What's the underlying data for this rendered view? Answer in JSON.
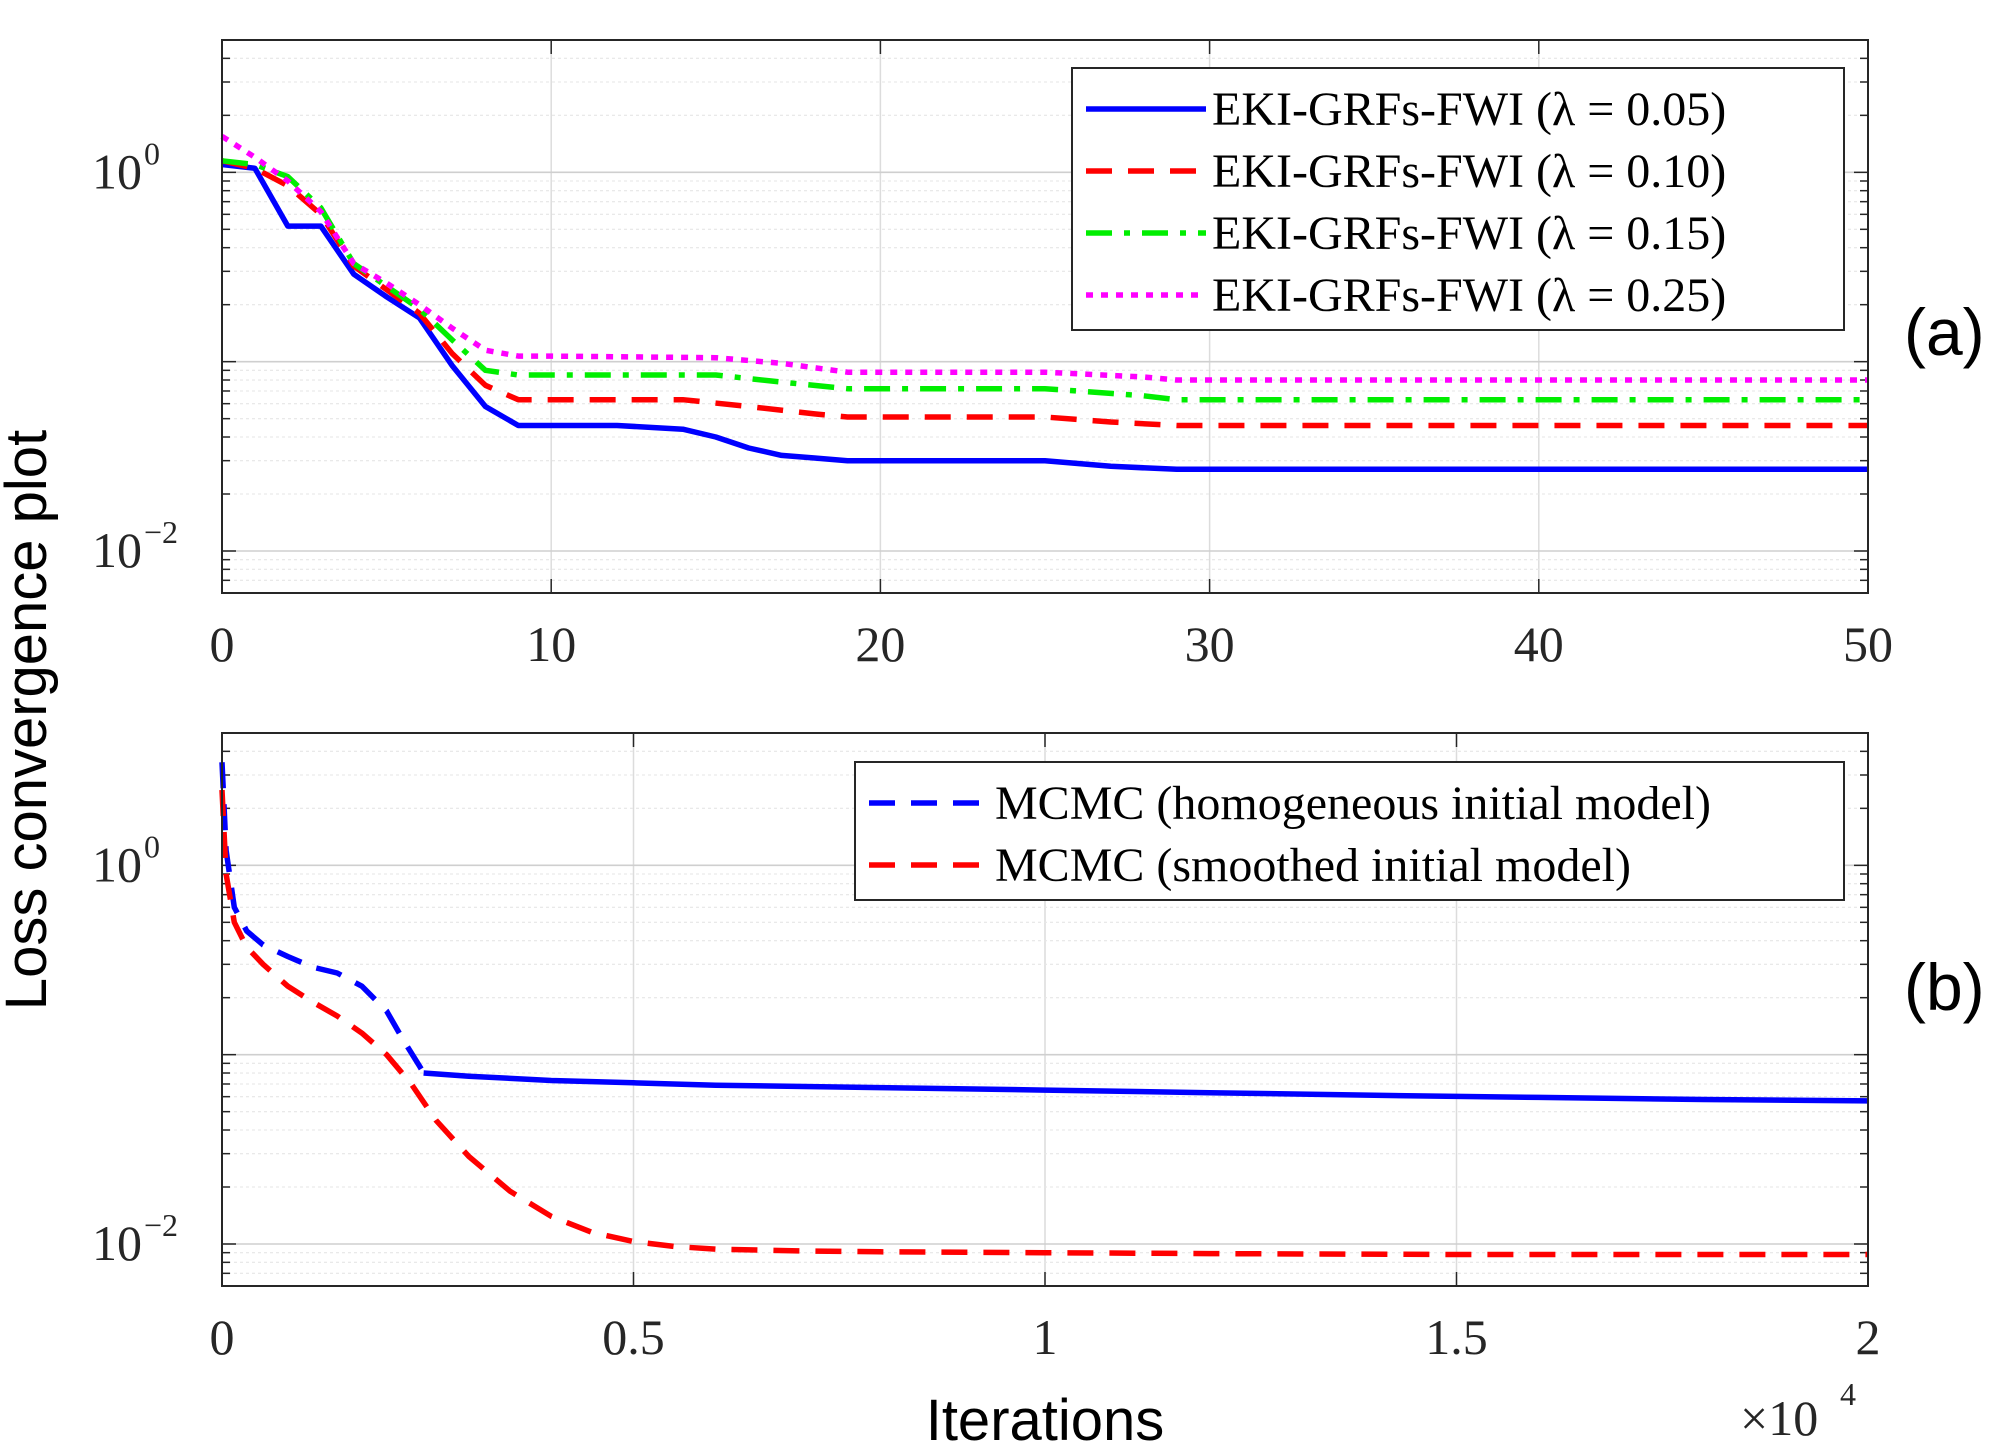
{
  "figure": {
    "ylabel": "Loss convergence plot",
    "xlabel": "Iterations"
  },
  "chart_data": [
    {
      "type": "line",
      "panel_label": "(a)",
      "yscale": "log",
      "ylim": [
        0.006,
        5
      ],
      "xlim": [
        0,
        50
      ],
      "xticks": [
        0,
        10,
        20,
        30,
        40,
        50
      ],
      "xtick_labels": [
        "0",
        "10",
        "20",
        "30",
        "40",
        "50"
      ],
      "yticks": [
        1,
        0.01
      ],
      "ytick_labels": [
        {
          "base": "10",
          "exp": "0"
        },
        {
          "base": "10",
          "exp": "−2"
        }
      ],
      "grid": true,
      "legend_position": "top-right",
      "series": [
        {
          "name": "EKI-GRFs-FWI (λ = 0.05)",
          "legend_label": "EKI-GRFs-FWI (λ = 0.05)",
          "color": "#0000ff",
          "style": "solid",
          "x": [
            0,
            1,
            2,
            3,
            4,
            5,
            6,
            7,
            8,
            9,
            10,
            12,
            14,
            15,
            16,
            17,
            18,
            19,
            20,
            25,
            27,
            29,
            30,
            40,
            50
          ],
          "y": [
            1.1,
            1.05,
            0.52,
            0.52,
            0.29,
            0.22,
            0.17,
            0.095,
            0.058,
            0.046,
            0.046,
            0.046,
            0.044,
            0.04,
            0.035,
            0.032,
            0.031,
            0.03,
            0.03,
            0.03,
            0.028,
            0.027,
            0.027,
            0.027,
            0.027
          ]
        },
        {
          "name": "EKI-GRFs-FWI (λ = 0.10)",
          "legend_label": "EKI-GRFs-FWI (λ = 0.10)",
          "color": "#ff0000",
          "style": "dashed",
          "x": [
            0,
            1,
            2,
            3,
            4,
            5,
            6,
            7,
            8,
            9,
            10,
            14,
            16,
            18,
            19,
            20,
            25,
            27,
            29,
            30,
            40,
            50
          ],
          "y": [
            1.15,
            1.05,
            0.85,
            0.6,
            0.32,
            0.24,
            0.18,
            0.11,
            0.075,
            0.063,
            0.063,
            0.063,
            0.058,
            0.053,
            0.051,
            0.051,
            0.051,
            0.048,
            0.046,
            0.046,
            0.046,
            0.046
          ]
        },
        {
          "name": "EKI-GRFs-FWI (λ = 0.15)",
          "legend_label": "EKI-GRFs-FWI (λ = 0.15)",
          "color": "#00ee00",
          "style": "dashdot",
          "x": [
            0,
            1,
            2,
            3,
            4,
            5,
            6,
            7,
            8,
            9,
            10,
            15,
            17,
            19,
            20,
            25,
            28,
            29,
            30,
            40,
            50
          ],
          "y": [
            1.15,
            1.1,
            0.95,
            0.65,
            0.33,
            0.25,
            0.19,
            0.13,
            0.09,
            0.085,
            0.085,
            0.085,
            0.078,
            0.072,
            0.072,
            0.072,
            0.066,
            0.063,
            0.063,
            0.063,
            0.063
          ]
        },
        {
          "name": "EKI-GRFs-FWI (λ = 0.25)",
          "legend_label": "EKI-GRFs-FWI (λ = 0.25)",
          "color": "#ff00ff",
          "style": "dotted",
          "x": [
            0,
            1,
            2,
            3,
            4,
            5,
            6,
            7,
            8,
            9,
            10,
            15,
            17,
            19,
            20,
            25,
            28,
            29,
            30,
            40,
            50
          ],
          "y": [
            1.55,
            1.2,
            0.9,
            0.62,
            0.33,
            0.26,
            0.2,
            0.15,
            0.115,
            0.107,
            0.107,
            0.105,
            0.098,
            0.088,
            0.088,
            0.088,
            0.083,
            0.08,
            0.08,
            0.08,
            0.08
          ]
        }
      ]
    },
    {
      "type": "line",
      "panel_label": "(b)",
      "yscale": "log",
      "ylim": [
        0.006,
        5
      ],
      "xlim": [
        0,
        20000
      ],
      "xticks": [
        0,
        5000,
        10000,
        15000,
        20000
      ],
      "xtick_labels": [
        "0",
        "0.5",
        "1",
        "1.5",
        "2"
      ],
      "x_multiplier": {
        "base": "×10",
        "exp": "4"
      },
      "yticks": [
        1,
        0.01
      ],
      "ytick_labels": [
        {
          "base": "10",
          "exp": "0"
        },
        {
          "base": "10",
          "exp": "−2"
        }
      ],
      "grid": true,
      "legend_position": "top-right",
      "series": [
        {
          "name": "MCMC (homogeneous initial model)",
          "legend_label": "MCMC (homogeneous initial model)",
          "color": "#0000ff",
          "style": "dashed",
          "x": [
            0,
            50,
            150,
            300,
            500,
            800,
            1100,
            1400,
            1700,
            2000,
            2200,
            2400,
            2450
          ],
          "y": [
            3.5,
            1.2,
            0.6,
            0.45,
            0.38,
            0.33,
            0.29,
            0.27,
            0.23,
            0.17,
            0.12,
            0.087,
            0.08
          ],
          "continuation": {
            "style": "solid",
            "x": [
              2450,
              3000,
              4000,
              5000,
              6000,
              8000,
              10000,
              12000,
              14000,
              16000,
              18000,
              20000
            ],
            "y": [
              0.08,
              0.077,
              0.073,
              0.071,
              0.069,
              0.067,
              0.065,
              0.063,
              0.061,
              0.0595,
              0.058,
              0.057
            ]
          }
        },
        {
          "name": "MCMC (smoothed initial model)",
          "legend_label": "MCMC (smoothed initial model)",
          "color": "#ff0000",
          "style": "dashed",
          "x": [
            0,
            50,
            150,
            300,
            500,
            800,
            1100,
            1400,
            1700,
            2000,
            2300,
            2600,
            3000,
            3500,
            4000,
            4500,
            5000,
            5500,
            6000,
            7000,
            8000,
            10000,
            12000,
            15000,
            18000,
            20000
          ],
          "y": [
            2.5,
            0.9,
            0.5,
            0.37,
            0.3,
            0.23,
            0.19,
            0.16,
            0.13,
            0.1,
            0.07,
            0.045,
            0.029,
            0.019,
            0.014,
            0.0115,
            0.0103,
            0.0097,
            0.0094,
            0.0092,
            0.0091,
            0.009,
            0.0089,
            0.0088,
            0.0088,
            0.0088
          ]
        }
      ]
    }
  ]
}
